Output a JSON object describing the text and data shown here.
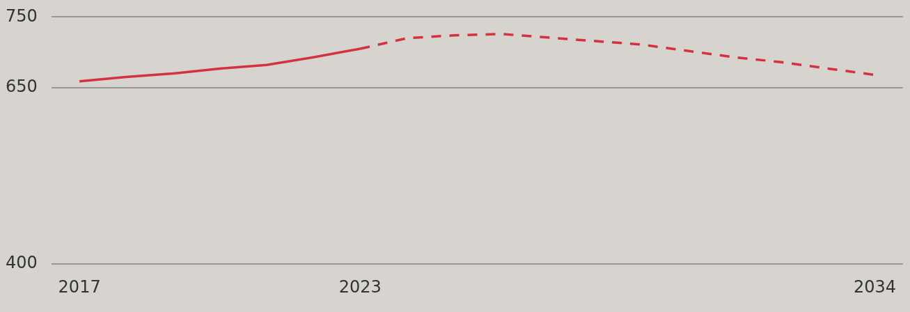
{
  "chart_data": {
    "type": "line",
    "x": [
      2017,
      2018,
      2019,
      2020,
      2021,
      2022,
      2023
    ],
    "xlim": [
      2016.4,
      2034.6
    ],
    "xticks": [
      2017,
      2023,
      2034
    ],
    "ylim": [
      400,
      750
    ],
    "yticks": [
      400,
      650,
      750
    ],
    "grid": "y",
    "legend": false,
    "marker": "none",
    "series": [
      {
        "color": "#d4323f",
        "line_style": "solid",
        "values": [
          659,
          665,
          670,
          677,
          682,
          693,
          705
        ]
      },
      {
        "color": "#d4323f",
        "line_style": "dashed",
        "x": [
          2023,
          2024,
          2025,
          2026,
          2027,
          2028,
          2029,
          2030,
          2031,
          2032,
          2033,
          2034
        ],
        "values": [
          705,
          720,
          724,
          726,
          721,
          716,
          711,
          702,
          693,
          686,
          677,
          668
        ]
      }
    ]
  }
}
